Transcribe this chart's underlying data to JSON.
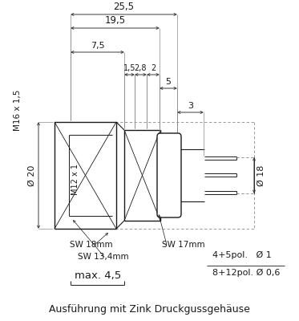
{
  "bg_color": "#ffffff",
  "line_color": "#1a1a1a",
  "dim_color": "#3a3a3a",
  "gray_line": "#888888",
  "title": "Ausführung mit Zink Druckgussgehäuse",
  "labels": {
    "dim_255": "25,5",
    "dim_195": "19,5",
    "dim_28": "2,8",
    "dim_2": "2",
    "dim_75": "7,5",
    "dim_15": "1,5",
    "dim_5": "5",
    "dim_3": "3",
    "dim_m16": "M16 x 1,5",
    "dim_m12": "M12 x 1",
    "dim_o20": "Ø 20",
    "dim_o18": "Ø 18",
    "sw18": "SW 18mm",
    "sw134": "SW 13,4mm",
    "sw17": "SW 17mm",
    "max45": "max. 4,5",
    "pol1": "4+5pol.   Ø 1",
    "pol2": "8+12pol. Ø 0,6"
  },
  "figsize": [
    3.73,
    4.0
  ],
  "dpi": 100
}
